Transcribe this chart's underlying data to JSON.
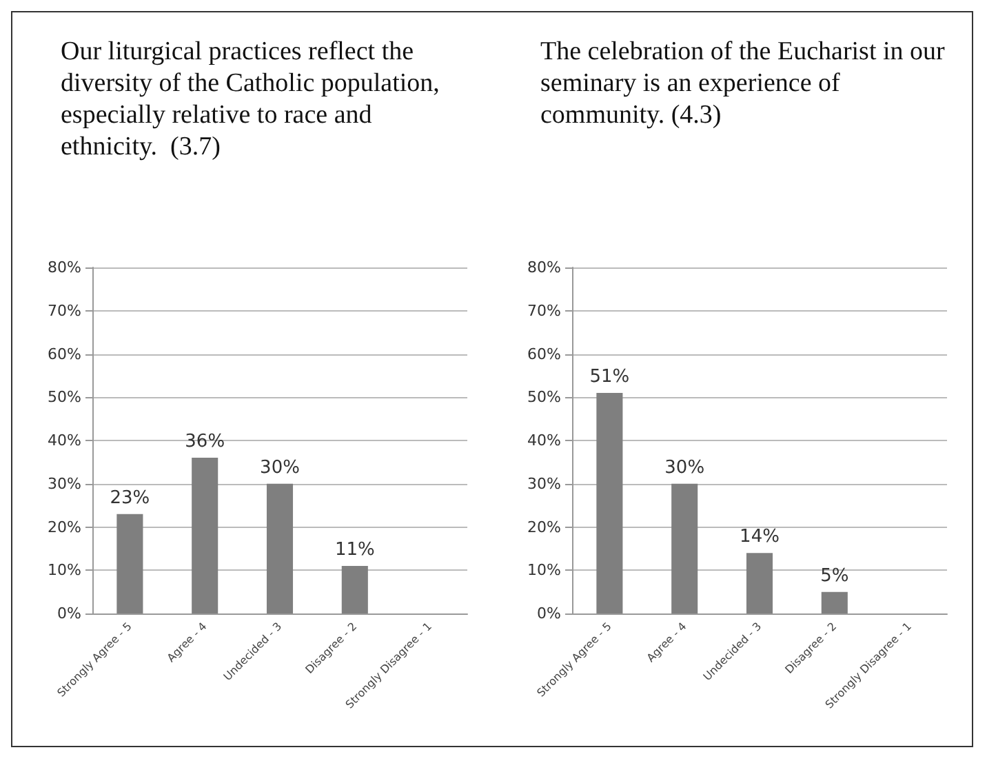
{
  "chart_data": [
    {
      "type": "bar",
      "title": "Our liturgical practices reflect the diversity of the Catholic population, especially relative to race and ethnicity.  (3.7)",
      "categories": [
        "Strongly Agree - 5",
        "Agree - 4",
        "Undecided - 3",
        "Disagree - 2",
        "Strongly Disagree - 1"
      ],
      "values": [
        23,
        36,
        30,
        11,
        0
      ],
      "value_labels": [
        "23%",
        "36%",
        "30%",
        "11%",
        null
      ],
      "color": "#7f7f7f",
      "ylim": [
        0,
        80
      ],
      "yticks": [
        {
          "value": 0,
          "label": "0%"
        },
        {
          "value": 10,
          "label": "10%"
        },
        {
          "value": 20,
          "label": "20%"
        },
        {
          "value": 30,
          "label": "30%"
        },
        {
          "value": 40,
          "label": "40%"
        },
        {
          "value": 50,
          "label": "50%"
        },
        {
          "value": 60,
          "label": "60%"
        },
        {
          "value": 70,
          "label": "70%"
        },
        {
          "value": 80,
          "label": "80%"
        }
      ],
      "grid": "y"
    },
    {
      "type": "bar",
      "title": "The celebration of the Eucharist in our seminary is an experience of community. (4.3)",
      "categories": [
        "Strongly Agree - 5",
        "Agree - 4",
        "Undecided - 3",
        "Disagree - 2",
        "Strongly Disagree - 1"
      ],
      "values": [
        51,
        30,
        14,
        5,
        0
      ],
      "value_labels": [
        "51%",
        "30%",
        "14%",
        "5%",
        null
      ],
      "color": "#7f7f7f",
      "ylim": [
        0,
        80
      ],
      "yticks": [
        {
          "value": 0,
          "label": "0%"
        },
        {
          "value": 10,
          "label": "10%"
        },
        {
          "value": 20,
          "label": "20%"
        },
        {
          "value": 30,
          "label": "30%"
        },
        {
          "value": 40,
          "label": "40%"
        },
        {
          "value": 50,
          "label": "50%"
        },
        {
          "value": 60,
          "label": "60%"
        },
        {
          "value": 70,
          "label": "70%"
        },
        {
          "value": 80,
          "label": "80%"
        }
      ],
      "grid": "y"
    }
  ]
}
